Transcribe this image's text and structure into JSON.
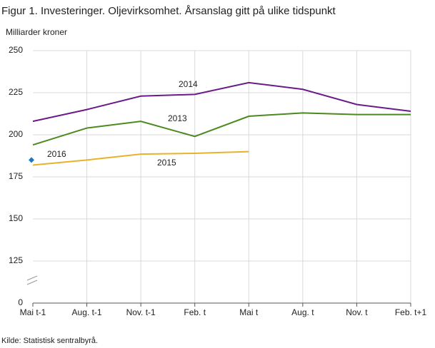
{
  "chart_data": {
    "type": "line",
    "title": "Figur 1. Investeringer. Oljevirksomhet. Årsanslag gitt på ulike tidspunkt",
    "y_label": "Milliarder  kroner",
    "source": "Kilde: Statistisk sentralbyrå.",
    "categories": [
      "Mai t-1",
      "Aug. t-1",
      "Nov. t-1",
      "Feb. t",
      "Mai t",
      "Aug. t",
      "Nov. t",
      "Feb. t+1"
    ],
    "ylim": [
      0,
      250
    ],
    "yticks": [
      0,
      125,
      150,
      175,
      200,
      225,
      250
    ],
    "y_break": true,
    "grid": true,
    "series": [
      {
        "name": "2014",
        "color": "#6a1b8a",
        "values": [
          208,
          215,
          223,
          224,
          231,
          227,
          218,
          214
        ]
      },
      {
        "name": "2013",
        "color": "#4a8a1e",
        "values": [
          194,
          204,
          208,
          199,
          211,
          213,
          212,
          212
        ]
      },
      {
        "name": "2015",
        "color": "#e8b22a",
        "values": [
          182,
          185,
          188.5,
          189,
          190,
          null,
          null,
          null
        ]
      },
      {
        "name": "2016",
        "color": "#1d76c6",
        "marker": "diamond",
        "values": [
          185,
          null,
          null,
          null,
          null,
          null,
          null,
          null
        ]
      }
    ]
  }
}
